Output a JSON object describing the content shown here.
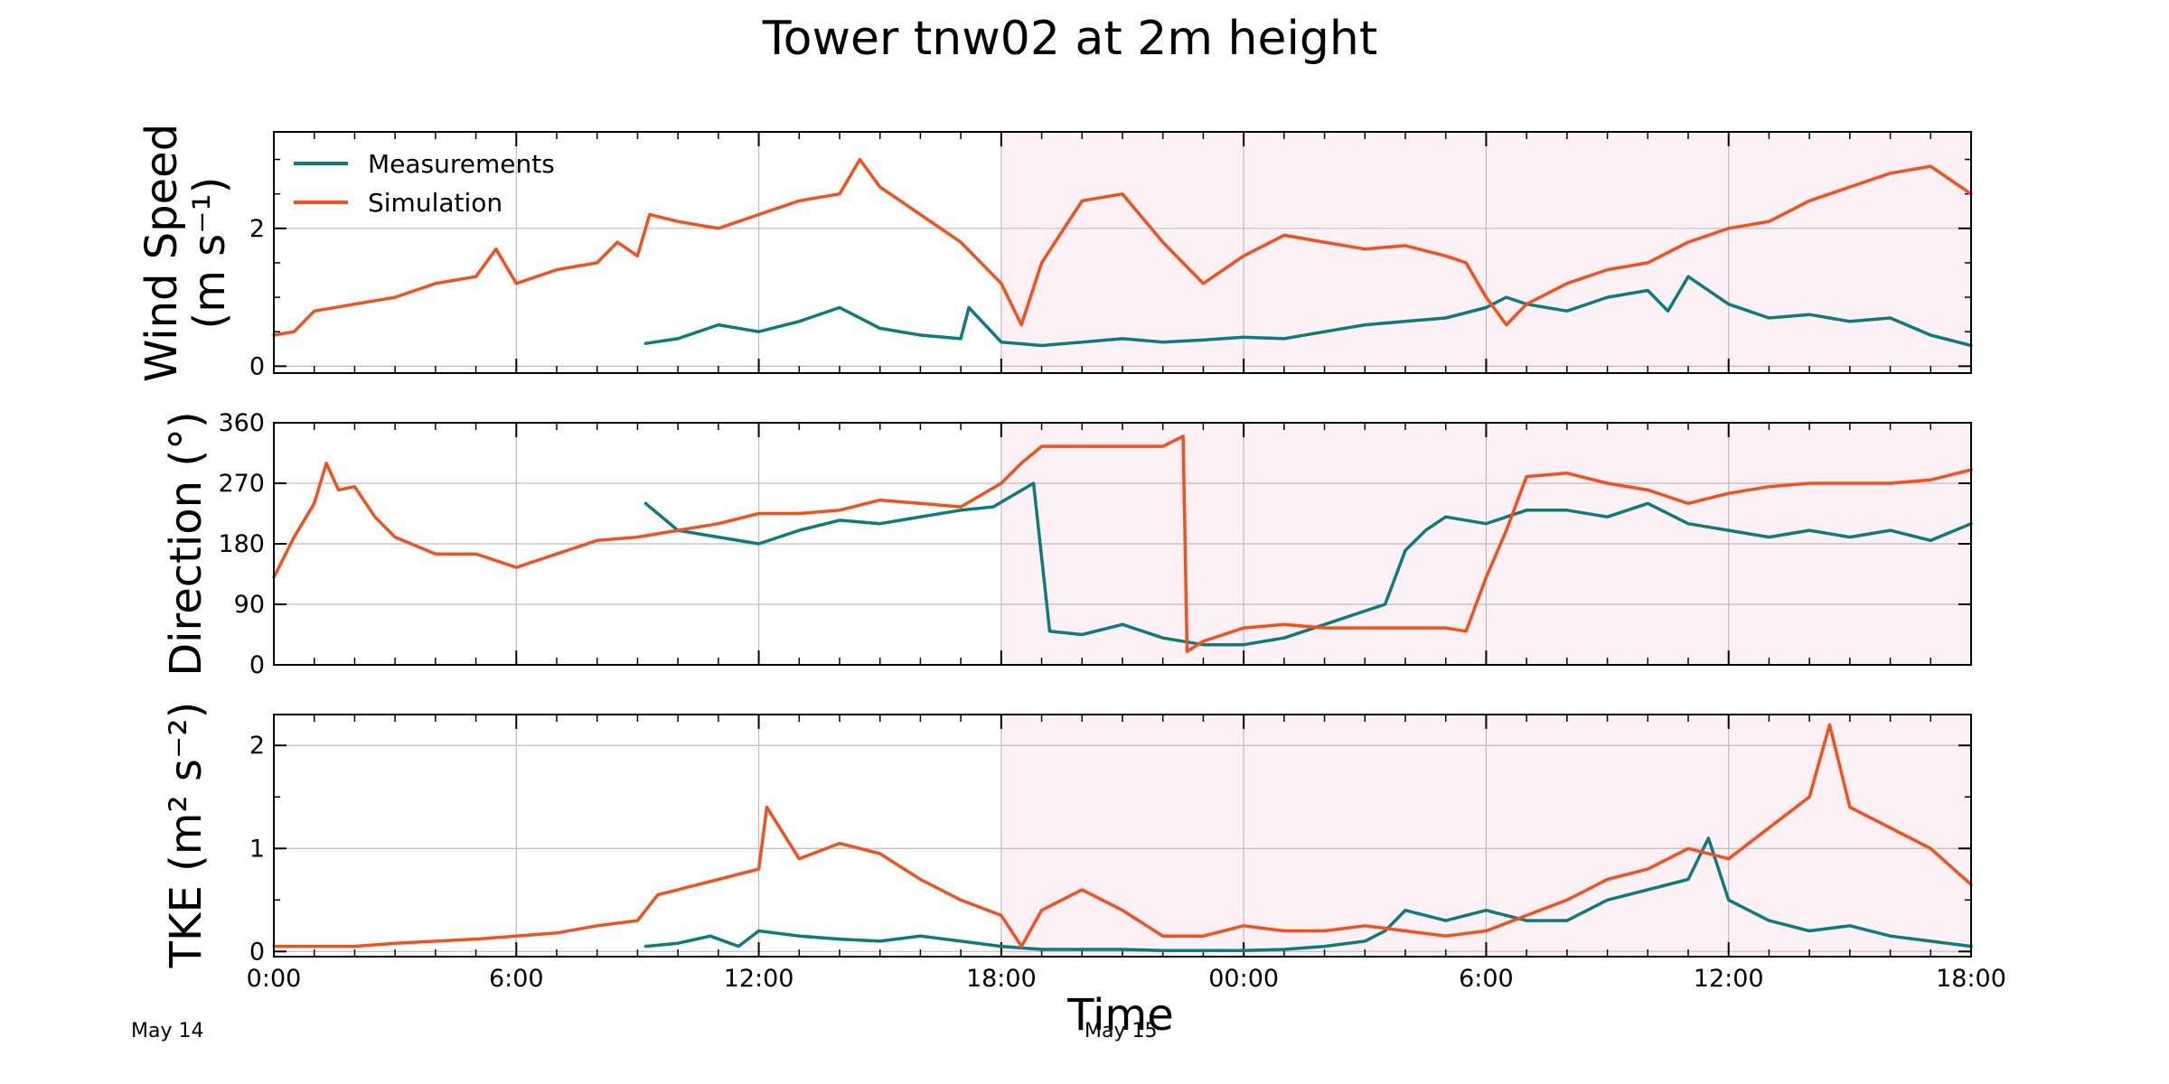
{
  "chart_data": {
    "type": "line",
    "title": "Tower tnw02 at 2m height",
    "xlabel": "Time",
    "date_labels": [
      "May 14",
      "May 15"
    ],
    "x_ticks": [
      "0:00",
      "6:00",
      "12:00",
      "18:00",
      "00:00",
      "6:00",
      "12:00",
      "18:00"
    ],
    "x_range_hours": [
      0,
      42
    ],
    "night_shading": [
      [
        18,
        24
      ],
      [
        24,
        30
      ],
      [
        30,
        36
      ],
      [
        36,
        42
      ]
    ],
    "shading_color": "#fdf1f5",
    "grid": true,
    "legend": {
      "position": "upper-left",
      "entries": [
        {
          "label": "Measurements",
          "color": "#0b7b7b"
        },
        {
          "label": "Simulation",
          "color": "#f4501e"
        }
      ]
    },
    "panels": [
      {
        "ylabel_line1": "Wind Speed",
        "ylabel_line2": "(m s⁻¹)",
        "ylim": [
          -0.1,
          3.4
        ],
        "yticks": [
          0,
          2
        ],
        "minor_yticks": [
          0.5,
          1,
          1.5,
          2.5,
          3
        ],
        "series": [
          {
            "name": "Measurements",
            "color": "#0b7b7b",
            "x": [
              9.2,
              10,
              11,
              12,
              13,
              14,
              15,
              16,
              17,
              17.2,
              18,
              19,
              20,
              21,
              22,
              23,
              24,
              25,
              26,
              27,
              28,
              29,
              30,
              30.5,
              31,
              32,
              33,
              34,
              34.5,
              35,
              36,
              37,
              38,
              39,
              40,
              41,
              42
            ],
            "y": [
              0.33,
              0.4,
              0.6,
              0.5,
              0.65,
              0.85,
              0.55,
              0.45,
              0.4,
              0.85,
              0.35,
              0.3,
              0.35,
              0.4,
              0.35,
              0.38,
              0.42,
              0.4,
              0.5,
              0.6,
              0.65,
              0.7,
              0.85,
              1.0,
              0.9,
              0.8,
              1.0,
              1.1,
              0.8,
              1.3,
              0.9,
              0.7,
              0.75,
              0.65,
              0.7,
              0.45,
              0.3
            ]
          },
          {
            "name": "Simulation",
            "color": "#f4501e",
            "x": [
              0,
              0.5,
              1,
              2,
              3,
              4,
              5,
              5.5,
              6,
              7,
              8,
              8.5,
              9,
              9.3,
              10,
              11,
              12,
              13,
              14,
              14.5,
              15,
              16,
              17,
              18,
              18.5,
              19,
              20,
              21,
              22,
              23,
              24,
              25,
              26,
              27,
              28,
              29,
              29.5,
              30,
              30.5,
              31,
              32,
              33,
              34,
              35,
              36,
              37,
              38,
              39,
              40,
              41,
              42
            ],
            "y": [
              0.45,
              0.5,
              0.8,
              0.9,
              1.0,
              1.2,
              1.3,
              1.7,
              1.2,
              1.4,
              1.5,
              1.8,
              1.6,
              2.2,
              2.1,
              2.0,
              2.2,
              2.4,
              2.5,
              3.0,
              2.6,
              2.2,
              1.8,
              1.2,
              0.6,
              1.5,
              2.4,
              2.5,
              1.8,
              1.2,
              1.6,
              1.9,
              1.8,
              1.7,
              1.75,
              1.6,
              1.5,
              1.0,
              0.6,
              0.9,
              1.2,
              1.4,
              1.5,
              1.8,
              2.0,
              2.1,
              2.4,
              2.6,
              2.8,
              2.9,
              2.5
            ]
          }
        ]
      },
      {
        "ylabel_line1": "Direction (°)",
        "ylabel_line2": "",
        "ylim": [
          0,
          360
        ],
        "yticks": [
          0,
          90,
          180,
          270,
          360
        ],
        "series": [
          {
            "name": "Measurements",
            "color": "#0b7b7b",
            "x": [
              9.2,
              10,
              11,
              12,
              13,
              14,
              15,
              16,
              17,
              17.8,
              18.8,
              19.2,
              20,
              21,
              22,
              23,
              24,
              25,
              26,
              27,
              27.5,
              28,
              28.5,
              29,
              30,
              31,
              32,
              33,
              34,
              35,
              36,
              37,
              38,
              39,
              40,
              41,
              42
            ],
            "y": [
              240,
              200,
              190,
              180,
              200,
              215,
              210,
              220,
              230,
              235,
              270,
              50,
              45,
              60,
              40,
              30,
              30,
              40,
              60,
              80,
              90,
              170,
              200,
              220,
              210,
              230,
              230,
              220,
              240,
              210,
              200,
              190,
              200,
              190,
              200,
              185,
              210
            ]
          },
          {
            "name": "Simulation",
            "color": "#f4501e",
            "x": [
              0,
              0.5,
              1,
              1.3,
              1.6,
              2,
              2.5,
              3,
              4,
              5,
              6,
              7,
              8,
              9,
              10,
              11,
              12,
              13,
              14,
              15,
              16,
              17,
              18,
              18.5,
              19,
              20,
              21,
              22,
              22.5,
              22.6,
              23,
              24,
              25,
              26,
              27,
              28,
              29,
              29.5,
              30,
              30.5,
              31,
              32,
              33,
              34,
              35,
              36,
              37,
              38,
              39,
              40,
              41,
              42
            ],
            "y": [
              130,
              190,
              240,
              300,
              260,
              265,
              220,
              190,
              165,
              165,
              145,
              165,
              185,
              190,
              200,
              210,
              225,
              225,
              230,
              245,
              240,
              235,
              270,
              300,
              325,
              325,
              325,
              325,
              340,
              20,
              35,
              55,
              60,
              55,
              55,
              55,
              55,
              50,
              130,
              200,
              280,
              285,
              270,
              260,
              240,
              255,
              265,
              270,
              270,
              270,
              275,
              290
            ]
          }
        ]
      },
      {
        "ylabel_line1": "TKE (m² s⁻²)",
        "ylabel_line2": "",
        "ylim": [
          -0.05,
          2.3
        ],
        "yticks": [
          0,
          1,
          2
        ],
        "minor_yticks": [
          0.5,
          1.5
        ],
        "series": [
          {
            "name": "Measurements",
            "color": "#0b7b7b",
            "x": [
              9.2,
              10,
              10.8,
              11.5,
              12,
              13,
              14,
              15,
              16,
              17,
              18,
              19,
              20,
              21,
              22,
              23,
              24,
              25,
              26,
              27,
              27.5,
              28,
              29,
              30,
              31,
              32,
              33,
              34,
              35,
              35.5,
              36,
              37,
              38,
              39,
              40,
              41,
              42
            ],
            "y": [
              0.05,
              0.08,
              0.15,
              0.05,
              0.2,
              0.15,
              0.12,
              0.1,
              0.15,
              0.1,
              0.05,
              0.02,
              0.02,
              0.02,
              0.01,
              0.01,
              0.01,
              0.02,
              0.05,
              0.1,
              0.2,
              0.4,
              0.3,
              0.4,
              0.3,
              0.3,
              0.5,
              0.6,
              0.7,
              1.1,
              0.5,
              0.3,
              0.2,
              0.25,
              0.15,
              0.1,
              0.05
            ]
          },
          {
            "name": "Simulation",
            "color": "#f4501e",
            "x": [
              0,
              1,
              2,
              3,
              4,
              5,
              6,
              7,
              8,
              9,
              9.5,
              10,
              11,
              12,
              12.2,
              13,
              14,
              15,
              16,
              17,
              18,
              18.5,
              19,
              20,
              21,
              22,
              23,
              24,
              25,
              26,
              27,
              28,
              29,
              30,
              31,
              32,
              33,
              34,
              35,
              36,
              37,
              38,
              38.5,
              39,
              40,
              41,
              42
            ],
            "y": [
              0.05,
              0.05,
              0.05,
              0.08,
              0.1,
              0.12,
              0.15,
              0.18,
              0.25,
              0.3,
              0.55,
              0.6,
              0.7,
              0.8,
              1.4,
              0.9,
              1.05,
              0.95,
              0.7,
              0.5,
              0.35,
              0.05,
              0.4,
              0.6,
              0.4,
              0.15,
              0.15,
              0.25,
              0.2,
              0.2,
              0.25,
              0.2,
              0.15,
              0.2,
              0.35,
              0.5,
              0.7,
              0.8,
              1.0,
              0.9,
              1.2,
              1.5,
              2.2,
              1.4,
              1.2,
              1.0,
              0.65
            ]
          }
        ]
      }
    ]
  }
}
